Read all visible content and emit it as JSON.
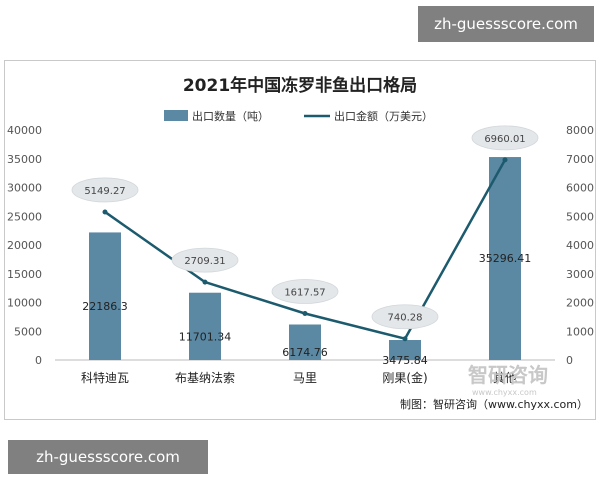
{
  "watermarks": {
    "top": "zh-guessscore.com",
    "bottom": "zh-guessscore.com"
  },
  "logo": {
    "name": "智研咨询",
    "site": "www.chyxx.com"
  },
  "chart_data": {
    "type": "bar",
    "title": "2021年中国冻罗非鱼出口格局",
    "categories": [
      "科特迪瓦",
      "布基纳法索",
      "马里",
      "刚果(金)",
      "其他"
    ],
    "series": [
      {
        "name": "出口数量（吨）",
        "type": "bar",
        "axis": "left",
        "values": [
          22186.3,
          11701.34,
          6174.76,
          3475.84,
          35296.41
        ],
        "labels": [
          "22186.3",
          "11701.34",
          "6174.76",
          "3475.84",
          "35296.41"
        ]
      },
      {
        "name": "出口金额（万美元）",
        "type": "line",
        "axis": "right",
        "values": [
          5149.27,
          2709.31,
          1617.57,
          740.28,
          6960.01
        ],
        "labels": [
          "5149.27",
          "2709.31",
          "1617.57",
          "740.28",
          "6960.01"
        ]
      }
    ],
    "y_left": {
      "range": [
        0,
        40000
      ],
      "ticks": [
        "0",
        "5000",
        "10000",
        "15000",
        "20000",
        "25000",
        "30000",
        "35000",
        "40000"
      ]
    },
    "y_right": {
      "range": [
        0,
        8000
      ],
      "ticks": [
        "0",
        "1000",
        "2000",
        "3000",
        "4000",
        "5000",
        "6000",
        "7000",
        "8000"
      ]
    },
    "grid": false,
    "legend": "top-center",
    "colors": {
      "bar": "#5b88a3",
      "line": "#1c5a6e",
      "label_bubble": "#e3e7ea"
    },
    "source": "制图：智研咨询（www.chyxx.com）"
  }
}
